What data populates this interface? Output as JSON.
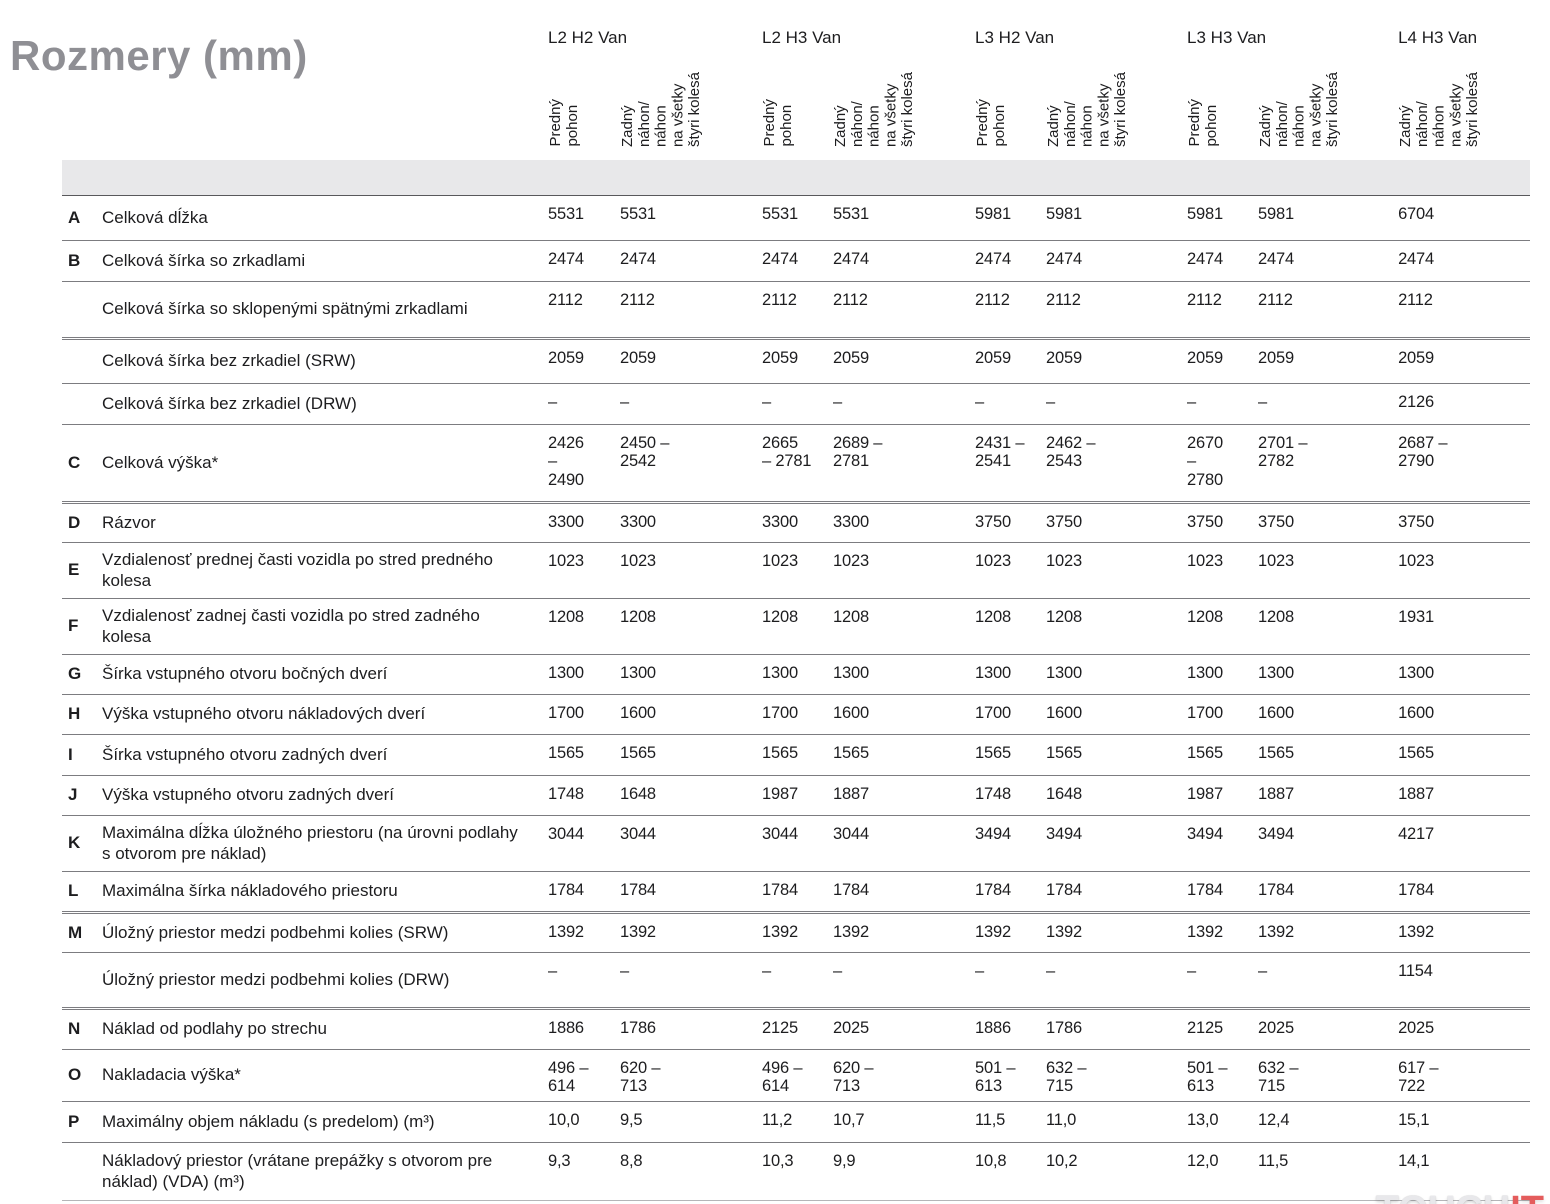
{
  "title": "Rozmery (mm)",
  "colors": {
    "title_gray": "#8f8f94",
    "band_gray": "#e8e8ea",
    "line_gray": "#7c7c80",
    "accent_red": "#e45c5c"
  },
  "header": {
    "groups": [
      {
        "label": "L2 H2 Van",
        "subs": [
          "Predný\npohon",
          "Zadný\nnáhon/\nnáhon\nna všetky\nštyri kolesá"
        ]
      },
      {
        "label": "L2 H3 Van",
        "subs": [
          "Predný\npohon",
          "Zadný\nnáhon/\nnáhon\nna všetky\nštyri kolesá"
        ]
      },
      {
        "label": "L3 H2 Van",
        "subs": [
          "Predný\npohon",
          "Zadný\nnáhon/\nnáhon\nna všetky\nštyri kolesá"
        ]
      },
      {
        "label": "L3 H3 Van",
        "subs": [
          "Predný\npohon",
          "Zadný\nnáhon/\nnáhon\nna všetky\nštyri kolesá"
        ]
      },
      {
        "label": "L4 H3 Van",
        "subs": [
          "Zadný\nnáhon/\nnáhon\nna všetky\nštyri kolesá"
        ]
      }
    ]
  },
  "rows": [
    {
      "letter": "A",
      "label": "Celková dĺžka",
      "values": [
        "5531",
        "5531",
        "5531",
        "5531",
        "5981",
        "5981",
        "5981",
        "5981",
        "6704"
      ]
    },
    {
      "letter": "B",
      "label": "Celková šírka so zrkadlami",
      "values": [
        "2474",
        "2474",
        "2474",
        "2474",
        "2474",
        "2474",
        "2474",
        "2474",
        "2474"
      ]
    },
    {
      "letter": "",
      "label": "Celková šírka so sklopenými spätnými zrkadlami",
      "values": [
        "2112",
        "2112",
        "2112",
        "2112",
        "2112",
        "2112",
        "2112",
        "2112",
        "2112"
      ]
    },
    {
      "letter": "",
      "label": "Celková šírka bez zrkadiel (SRW)",
      "values": [
        "2059",
        "2059",
        "2059",
        "2059",
        "2059",
        "2059",
        "2059",
        "2059",
        "2059"
      ]
    },
    {
      "letter": "",
      "label": "Celková šírka bez zrkadiel (DRW)",
      "values": [
        "–",
        "–",
        "–",
        "–",
        "–",
        "–",
        "–",
        "–",
        "2126"
      ]
    },
    {
      "letter": "C",
      "label": "Celková výška*",
      "values": [
        "2426\n–\n2490",
        "2450 –\n2542",
        "2665\n– 2781",
        "2689 –\n2781",
        "2431 –\n2541",
        "2462 –\n2543",
        "2670\n–\n2780",
        "2701 –\n2782",
        "2687 –\n2790"
      ]
    },
    {
      "letter": "D",
      "label": "Rázvor",
      "values": [
        "3300",
        "3300",
        "3300",
        "3300",
        "3750",
        "3750",
        "3750",
        "3750",
        "3750"
      ]
    },
    {
      "letter": "E",
      "label": "Vzdialenosť prednej časti vozidla po stred predného kolesa",
      "values": [
        "1023",
        "1023",
        "1023",
        "1023",
        "1023",
        "1023",
        "1023",
        "1023",
        "1023"
      ]
    },
    {
      "letter": "F",
      "label": "Vzdialenosť zadnej časti vozidla po stred zadného kolesa",
      "values": [
        "1208",
        "1208",
        "1208",
        "1208",
        "1208",
        "1208",
        "1208",
        "1208",
        "1931"
      ]
    },
    {
      "letter": "G",
      "label": "Šírka vstupného otvoru bočných dverí",
      "values": [
        "1300",
        "1300",
        "1300",
        "1300",
        "1300",
        "1300",
        "1300",
        "1300",
        "1300"
      ]
    },
    {
      "letter": "H",
      "label": "Výška vstupného otvoru nákladových dverí",
      "values": [
        "1700",
        "1600",
        "1700",
        "1600",
        "1700",
        "1600",
        "1700",
        "1600",
        "1600"
      ]
    },
    {
      "letter": "I",
      "label": "Šírka vstupného otvoru zadných dverí",
      "values": [
        "1565",
        "1565",
        "1565",
        "1565",
        "1565",
        "1565",
        "1565",
        "1565",
        "1565"
      ]
    },
    {
      "letter": "J",
      "label": "Výška vstupného otvoru zadných dverí",
      "values": [
        "1748",
        "1648",
        "1987",
        "1887",
        "1748",
        "1648",
        "1987",
        "1887",
        "1887"
      ]
    },
    {
      "letter": "K",
      "label": "Maximálna dĺžka úložného priestoru (na úrovni podlahy s otvorom pre náklad)",
      "values": [
        "3044",
        "3044",
        "3044",
        "3044",
        "3494",
        "3494",
        "3494",
        "3494",
        "4217"
      ]
    },
    {
      "letter": "L",
      "label": "Maximálna šírka nákladového priestoru",
      "values": [
        "1784",
        "1784",
        "1784",
        "1784",
        "1784",
        "1784",
        "1784",
        "1784",
        "1784"
      ]
    },
    {
      "letter": "M",
      "label": "Úložný priestor medzi podbehmi kolies (SRW)",
      "values": [
        "1392",
        "1392",
        "1392",
        "1392",
        "1392",
        "1392",
        "1392",
        "1392",
        "1392"
      ]
    },
    {
      "letter": "",
      "label": "Úložný priestor medzi podbehmi kolies (DRW)",
      "values": [
        "–",
        "–",
        "–",
        "–",
        "–",
        "–",
        "–",
        "–",
        "1154"
      ]
    },
    {
      "letter": "N",
      "label": "Náklad od podlahy po strechu",
      "values": [
        "1886",
        "1786",
        "2125",
        "2025",
        "1886",
        "1786",
        "2125",
        "2025",
        "2025"
      ]
    },
    {
      "letter": "O",
      "label": "Nakladacia výška*",
      "values": [
        "496 –\n614",
        "620 –\n713",
        "496 –\n614",
        "620 –\n713",
        "501 –\n613",
        "632 –\n715",
        "501 –\n613",
        "632 –\n715",
        "617 –\n722"
      ]
    },
    {
      "letter": "P",
      "label": "Maximálny objem nákladu (s predelom) (m³)",
      "values": [
        "10,0",
        "9,5",
        "11,2",
        "10,7",
        "11,5",
        "11,0",
        "13,0",
        "12,4",
        "15,1"
      ]
    },
    {
      "letter": "",
      "label": "Nákladový priestor (vrátane prepážky s otvorom pre náklad) (VDA) (m³)",
      "values": [
        "9,3",
        "8,8",
        "10,3",
        "9,9",
        "10,8",
        "10,2",
        "12,0",
        "11,5",
        "14,1"
      ]
    }
  ],
  "watermark": {
    "gray_part": "TOUCH",
    "red_part": "IT"
  }
}
